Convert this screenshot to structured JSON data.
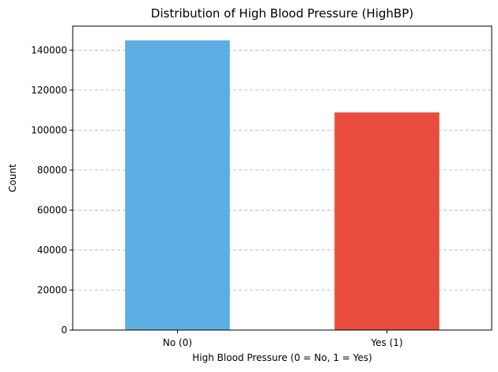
{
  "chart_data": {
    "type": "bar",
    "title": "Distribution of High Blood Pressure (HighBP)",
    "xlabel": "High Blood Pressure (0 = No, 1 = Yes)",
    "ylabel": "Count",
    "categories": [
      "No (0)",
      "Yes (1)"
    ],
    "values": [
      144851,
      108829
    ],
    "colors": [
      "#5dade2",
      "#e74c3c"
    ],
    "ylim": [
      0,
      152000
    ],
    "yticks": [
      0,
      20000,
      40000,
      60000,
      80000,
      100000,
      120000,
      140000
    ],
    "grid": "y-dashed",
    "legend": "none"
  }
}
